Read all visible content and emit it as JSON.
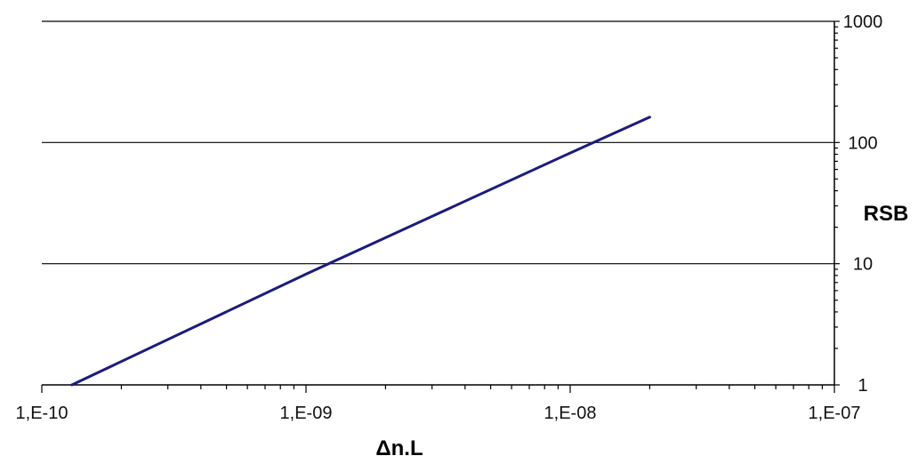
{
  "chart_data": {
    "type": "line",
    "title": "",
    "xlabel": "Δn.L",
    "ylabel": "RSB",
    "x_scale": "log",
    "y_scale": "log",
    "xlim": [
      1e-10,
      1e-07
    ],
    "ylim": [
      1,
      1000
    ],
    "x_ticks": [
      1e-10,
      1e-09,
      1e-08,
      1e-07
    ],
    "x_tick_labels": [
      "1,E-10",
      "1,E-09",
      "1,E-08",
      "1,E-07"
    ],
    "y_ticks": [
      1,
      10,
      100,
      1000
    ],
    "y_tick_labels": [
      "1",
      "10",
      "100",
      "1000"
    ],
    "y_axis_side": "right",
    "grid": "horizontal major gridlines",
    "legend": "none",
    "series": [
      {
        "color": "#1c1c7c",
        "x": [
          1.3e-10,
          1e-09,
          1e-08,
          2e-08
        ],
        "y": [
          1,
          8.2,
          82,
          162
        ]
      }
    ]
  }
}
